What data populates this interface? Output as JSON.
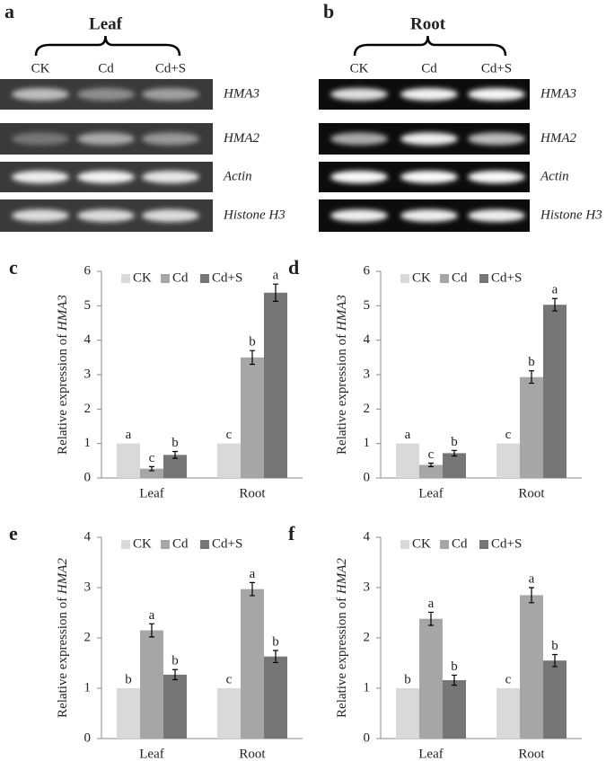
{
  "gels": [
    {
      "panel": "a",
      "title": "Leaf",
      "lanes": [
        "CK",
        "Cd",
        "Cd+S"
      ],
      "genes": [
        "HMA3",
        "HMA2",
        "Actin",
        "Histone H3"
      ]
    },
    {
      "panel": "b",
      "title": "Root",
      "lanes": [
        "CK",
        "Cd",
        "Cd+S"
      ],
      "genes": [
        "HMA3",
        "HMA2",
        "Actin",
        "Histone H3"
      ]
    }
  ],
  "chart_data": [
    {
      "type": "bar",
      "panel": "c",
      "ylabel_parts": [
        "Relative expression of ",
        "HMA3"
      ],
      "categories": [
        "Leaf",
        "Root"
      ],
      "ylim": [
        0,
        6
      ],
      "yticks": [
        0,
        1,
        2,
        3,
        4,
        5,
        6
      ],
      "series": [
        {
          "name": "CK",
          "color": "#d9d9d9",
          "values": [
            1,
            1
          ],
          "letters": [
            "a",
            "c"
          ]
        },
        {
          "name": "Cd",
          "color": "#a6a6a6",
          "values": [
            0.27,
            3.5
          ],
          "errors": [
            0.06,
            0.2
          ],
          "letters": [
            "c",
            "b"
          ]
        },
        {
          "name": "Cd+S",
          "color": "#767676",
          "values": [
            0.67,
            5.38
          ],
          "errors": [
            0.1,
            0.25
          ],
          "letters": [
            "b",
            "a"
          ]
        }
      ]
    },
    {
      "type": "bar",
      "panel": "d",
      "ylabel_parts": [
        "Relative expression of ",
        "HMA3"
      ],
      "categories": [
        "Leaf",
        "Root"
      ],
      "ylim": [
        0,
        6
      ],
      "yticks": [
        0,
        1,
        2,
        3,
        4,
        5,
        6
      ],
      "series": [
        {
          "name": "CK",
          "color": "#d9d9d9",
          "values": [
            1,
            1
          ],
          "letters": [
            "a",
            "c"
          ]
        },
        {
          "name": "Cd",
          "color": "#a6a6a6",
          "values": [
            0.38,
            2.93
          ],
          "errors": [
            0.05,
            0.18
          ],
          "letters": [
            "c",
            "b"
          ]
        },
        {
          "name": "Cd+S",
          "color": "#767676",
          "values": [
            0.72,
            5.03
          ],
          "errors": [
            0.08,
            0.18
          ],
          "letters": [
            "b",
            "a"
          ]
        }
      ]
    },
    {
      "type": "bar",
      "panel": "e",
      "ylabel_parts": [
        "Relative expression of ",
        "HMA2"
      ],
      "categories": [
        "Leaf",
        "Root"
      ],
      "ylim": [
        0,
        4
      ],
      "yticks": [
        0,
        1,
        2,
        3,
        4
      ],
      "series": [
        {
          "name": "CK",
          "color": "#d9d9d9",
          "values": [
            1,
            1
          ],
          "letters": [
            "b",
            "c"
          ]
        },
        {
          "name": "Cd",
          "color": "#a6a6a6",
          "values": [
            2.15,
            2.97
          ],
          "errors": [
            0.13,
            0.13
          ],
          "letters": [
            "a",
            "a"
          ]
        },
        {
          "name": "Cd+S",
          "color": "#767676",
          "values": [
            1.27,
            1.63
          ],
          "errors": [
            0.1,
            0.12
          ],
          "letters": [
            "b",
            "b"
          ]
        }
      ]
    },
    {
      "type": "bar",
      "panel": "f",
      "ylabel_parts": [
        "Relative expression of ",
        "HMA2"
      ],
      "categories": [
        "Leaf",
        "Root"
      ],
      "ylim": [
        0,
        4
      ],
      "yticks": [
        0,
        1,
        2,
        3,
        4
      ],
      "series": [
        {
          "name": "CK",
          "color": "#d9d9d9",
          "values": [
            1,
            1
          ],
          "letters": [
            "b",
            "c"
          ]
        },
        {
          "name": "Cd",
          "color": "#a6a6a6",
          "values": [
            2.38,
            2.85
          ],
          "errors": [
            0.13,
            0.15
          ],
          "letters": [
            "a",
            "a"
          ]
        },
        {
          "name": "Cd+S",
          "color": "#767676",
          "values": [
            1.16,
            1.55
          ],
          "errors": [
            0.1,
            0.12
          ],
          "letters": [
            "b",
            "b"
          ]
        }
      ]
    }
  ]
}
